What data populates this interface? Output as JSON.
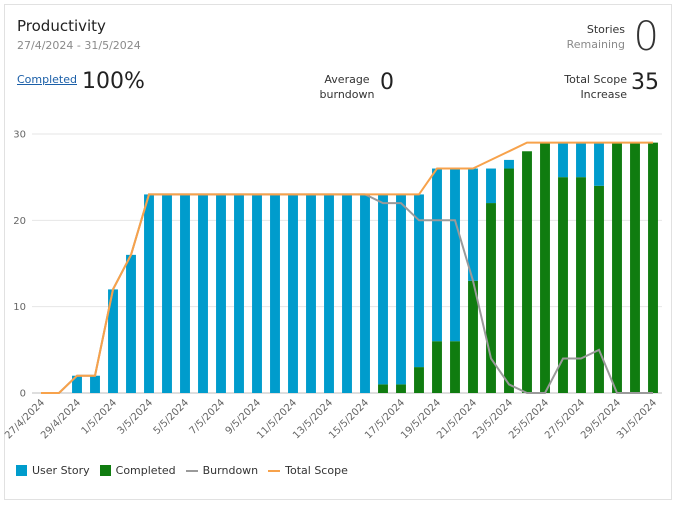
{
  "header": {
    "title": "Productivity",
    "date_range": "27/4/2024 - 31/5/2024",
    "stories_label": "Stories",
    "remaining_label": "Remaining",
    "stories_remaining": "0",
    "completed_link": "Completed",
    "completed_value": "100%",
    "average_label_line1": "Average",
    "average_label_line2": "burndown",
    "average_value": "0",
    "scope_label_line1": "Total Scope",
    "scope_label_line2": "Increase",
    "scope_value": "35"
  },
  "colors": {
    "user_story": "#009ccc",
    "completed": "#107c10",
    "burndown": "#9a9a9a",
    "total_scope": "#f7a24b",
    "grid": "#e6e6e6"
  },
  "legend": {
    "user_story": "User Story",
    "completed": "Completed",
    "burndown": "Burndown",
    "total_scope": "Total Scope"
  },
  "chart_data": {
    "type": "bar",
    "title": "Productivity",
    "ylim": [
      0,
      30
    ],
    "yticks": [
      0,
      10,
      20,
      30
    ],
    "grid": true,
    "legend_position": "bottom-left",
    "dates": [
      "27/4/2024",
      "28/4/2024",
      "29/4/2024",
      "30/4/2024",
      "1/5/2024",
      "2/5/2024",
      "3/5/2024",
      "4/5/2024",
      "5/5/2024",
      "6/5/2024",
      "7/5/2024",
      "8/5/2024",
      "9/5/2024",
      "10/5/2024",
      "11/5/2024",
      "12/5/2024",
      "13/5/2024",
      "14/5/2024",
      "15/5/2024",
      "16/5/2024",
      "17/5/2024",
      "18/5/2024",
      "19/5/2024",
      "20/5/2024",
      "21/5/2024",
      "22/5/2024",
      "23/5/2024",
      "24/5/2024",
      "25/5/2024",
      "26/5/2024",
      "27/5/2024",
      "28/5/2024",
      "29/5/2024",
      "30/5/2024",
      "31/5/2024"
    ],
    "x_tick_labels": [
      "27/4/2024",
      "29/4/2024",
      "1/5/2024",
      "3/5/2024",
      "5/5/2024",
      "7/5/2024",
      "9/5/2024",
      "11/5/2024",
      "13/5/2024",
      "15/5/2024",
      "17/5/2024",
      "19/5/2024",
      "21/5/2024",
      "23/5/2024",
      "25/5/2024",
      "27/5/2024",
      "29/5/2024",
      "31/5/2024"
    ],
    "series": [
      {
        "name": "User Story",
        "type": "bar",
        "values": [
          0,
          0,
          2,
          2,
          12,
          16,
          23,
          23,
          23,
          23,
          23,
          23,
          23,
          23,
          23,
          23,
          23,
          23,
          23,
          22,
          22,
          20,
          20,
          20,
          13,
          4,
          1,
          0,
          0,
          4,
          4,
          5,
          0,
          0,
          0
        ]
      },
      {
        "name": "Completed",
        "type": "bar",
        "values": [
          0,
          0,
          0,
          0,
          0,
          0,
          0,
          0,
          0,
          0,
          0,
          0,
          0,
          0,
          0,
          0,
          0,
          0,
          0,
          1,
          1,
          3,
          6,
          6,
          13,
          22,
          26,
          28,
          29,
          25,
          25,
          24,
          29,
          29,
          29
        ]
      },
      {
        "name": "Burndown",
        "type": "line",
        "values": [
          0,
          0,
          2,
          2,
          12,
          16,
          23,
          23,
          23,
          23,
          23,
          23,
          23,
          23,
          23,
          23,
          23,
          23,
          23,
          22,
          22,
          20,
          20,
          20,
          13,
          4,
          1,
          0,
          0,
          4,
          4,
          5,
          0,
          0,
          0
        ]
      },
      {
        "name": "Total Scope",
        "type": "line",
        "values": [
          0,
          0,
          2,
          2,
          12,
          16,
          23,
          23,
          23,
          23,
          23,
          23,
          23,
          23,
          23,
          23,
          23,
          23,
          23,
          23,
          23,
          23,
          26,
          26,
          26,
          27,
          28,
          29,
          29,
          29,
          29,
          29,
          29,
          29,
          29
        ]
      }
    ]
  }
}
